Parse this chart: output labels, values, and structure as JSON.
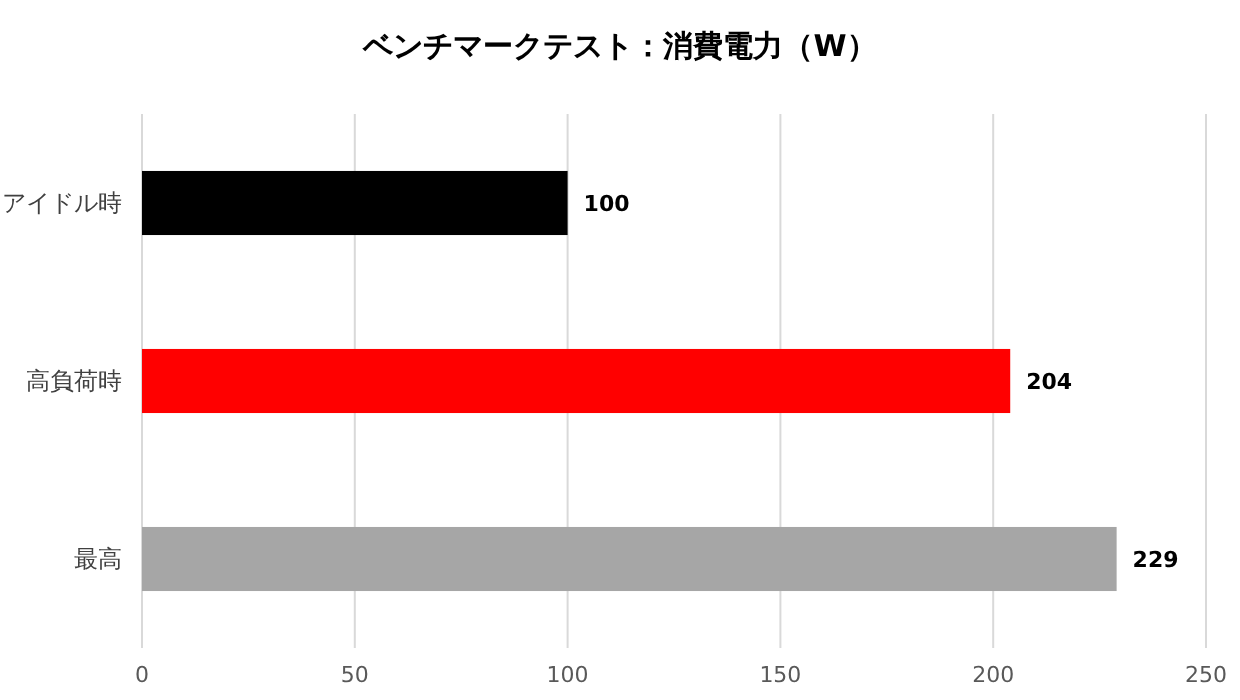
{
  "chart_data": {
    "type": "bar",
    "orientation": "horizontal",
    "title": "ベンチマークテスト：消費電力（W）",
    "categories": [
      "アイドル時",
      "高負荷時",
      "最高"
    ],
    "values": [
      100,
      204,
      229
    ],
    "colors": [
      "#000000",
      "#ff0000",
      "#a6a6a6"
    ],
    "xlim": [
      0,
      250
    ],
    "xticks": [
      0,
      50,
      100,
      150,
      200,
      250
    ],
    "grid": "x",
    "data_labels": true
  }
}
